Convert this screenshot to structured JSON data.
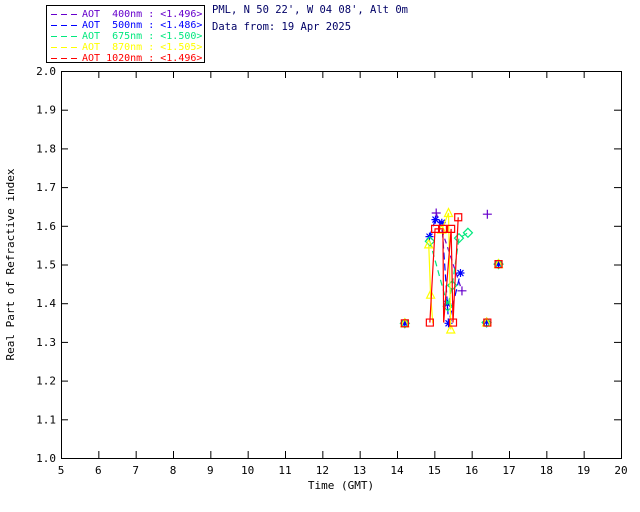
{
  "header": {
    "line1": "PML, N 50 22', W 04 08', Alt 0m",
    "line2": "Data from: 19 Apr 2025",
    "color": "#000066"
  },
  "legend": {
    "items": [
      {
        "label": "AOT  400nm : <1.496>",
        "color": "#6600CC"
      },
      {
        "label": "AOT  500nm : <1.486>",
        "color": "#0000FF"
      },
      {
        "label": "AOT  675nm : <1.500>",
        "color": "#00E87E"
      },
      {
        "label": "AOT  870nm : <1.505>",
        "color": "#FFFF00"
      },
      {
        "label": "AOT 1020nm : <1.496>",
        "color": "#FF0000"
      }
    ]
  },
  "chart_data": {
    "type": "scatter",
    "title": "",
    "xlabel": "Time (GMT)",
    "ylabel": "Real Part of Refractive index",
    "xlim": [
      5,
      20
    ],
    "ylim": [
      1.0,
      2.0
    ],
    "grid": false,
    "legend_position": "top-left-outside",
    "x_tick_values": [
      5,
      6,
      7,
      8,
      9,
      10,
      11,
      12,
      13,
      14,
      15,
      16,
      17,
      18,
      19,
      20
    ],
    "x_tick_labels": [
      "5",
      "6",
      "7",
      "8",
      "9",
      "10",
      "11",
      "12",
      "13",
      "14",
      "15",
      "16",
      "17",
      "18",
      "19",
      "20"
    ],
    "y_tick_values": [
      1.0,
      1.1,
      1.2,
      1.3,
      1.4,
      1.5,
      1.6,
      1.7,
      1.8,
      1.9,
      2.0
    ],
    "y_tick_labels": [
      "1.0",
      "1.1",
      "1.2",
      "1.3",
      "1.4",
      "1.5",
      "1.6",
      "1.7",
      "1.8",
      "1.9",
      "2.0"
    ],
    "series": [
      {
        "name": "AOT 400nm",
        "retrieved_mean": "<1.496>",
        "color": "#6600CC",
        "marker": "plus",
        "dash": [
          5,
          4
        ],
        "points": [
          [
            14.21,
            1.348
          ],
          [
            15.05,
            1.633
          ],
          [
            15.74,
            1.432
          ],
          [
            16.42,
            1.63
          ],
          [
            16.72,
            1.501
          ]
        ],
        "segments": [
          [
            [
              15.05,
              1.633
            ],
            [
              15.74,
              1.432
            ]
          ]
        ]
      },
      {
        "name": "AOT 500nm",
        "retrieved_mean": "<1.486>",
        "color": "#0000FF",
        "marker": "asterisk",
        "dash": [
          7,
          4
        ],
        "points": [
          [
            14.21,
            1.348
          ],
          [
            14.87,
            1.572
          ],
          [
            15.03,
            1.616
          ],
          [
            15.2,
            1.608
          ],
          [
            15.35,
            1.398
          ],
          [
            15.38,
            1.348
          ],
          [
            15.7,
            1.478
          ],
          [
            16.4,
            1.352
          ],
          [
            16.72,
            1.501
          ]
        ],
        "segments": [
          [
            [
              14.87,
              1.572
            ],
            [
              15.03,
              1.616
            ],
            [
              15.2,
              1.608
            ],
            [
              15.35,
              1.398
            ],
            [
              15.38,
              1.348
            ],
            [
              15.7,
              1.478
            ]
          ]
        ]
      },
      {
        "name": "AOT 675nm",
        "retrieved_mean": "<1.500>",
        "color": "#00E87E",
        "marker": "diamond",
        "dash": [
          6,
          4
        ],
        "points": [
          [
            14.21,
            1.348
          ],
          [
            14.88,
            1.56
          ],
          [
            15.36,
            1.392
          ],
          [
            15.48,
            1.446
          ],
          [
            15.66,
            1.568
          ],
          [
            15.9,
            1.582
          ],
          [
            16.4,
            1.35
          ],
          [
            16.72,
            1.501
          ]
        ],
        "segments": [
          [
            [
              14.88,
              1.56
            ],
            [
              15.36,
              1.392
            ],
            [
              15.48,
              1.446
            ],
            [
              15.66,
              1.568
            ],
            [
              15.9,
              1.582
            ]
          ]
        ]
      },
      {
        "name": "AOT 870nm",
        "retrieved_mean": "<1.505>",
        "color": "#FFFF00",
        "marker": "triangle",
        "dash": [],
        "points": [
          [
            14.21,
            1.348
          ],
          [
            14.85,
            1.552
          ],
          [
            14.9,
            1.422
          ],
          [
            15.2,
            1.59
          ],
          [
            15.38,
            1.633
          ],
          [
            15.44,
            1.332
          ],
          [
            16.4,
            1.35
          ],
          [
            16.72,
            1.501
          ]
        ],
        "segments": [
          [
            [
              14.85,
              1.552
            ],
            [
              14.9,
              1.422
            ],
            [
              14.96,
              1.348
            ]
          ],
          [
            [
              15.2,
              1.59
            ],
            [
              15.38,
              1.633
            ],
            [
              15.44,
              1.332
            ]
          ]
        ]
      },
      {
        "name": "AOT 1020nm",
        "retrieved_mean": "<1.496>",
        "color": "#FF0000",
        "marker": "square",
        "dash": [],
        "points": [
          [
            14.21,
            1.348
          ],
          [
            14.88,
            1.35
          ],
          [
            15.02,
            1.592
          ],
          [
            15.23,
            1.592
          ],
          [
            15.45,
            1.592
          ],
          [
            15.5,
            1.35
          ],
          [
            15.64,
            1.622
          ],
          [
            16.42,
            1.35
          ],
          [
            16.72,
            1.501
          ]
        ],
        "segments": [
          [
            [
              14.88,
              1.35
            ],
            [
              15.02,
              1.592
            ],
            [
              15.23,
              1.592
            ],
            [
              15.25,
              1.35
            ],
            [
              15.45,
              1.592
            ],
            [
              15.5,
              1.35
            ],
            [
              15.64,
              1.622
            ]
          ]
        ]
      }
    ]
  }
}
